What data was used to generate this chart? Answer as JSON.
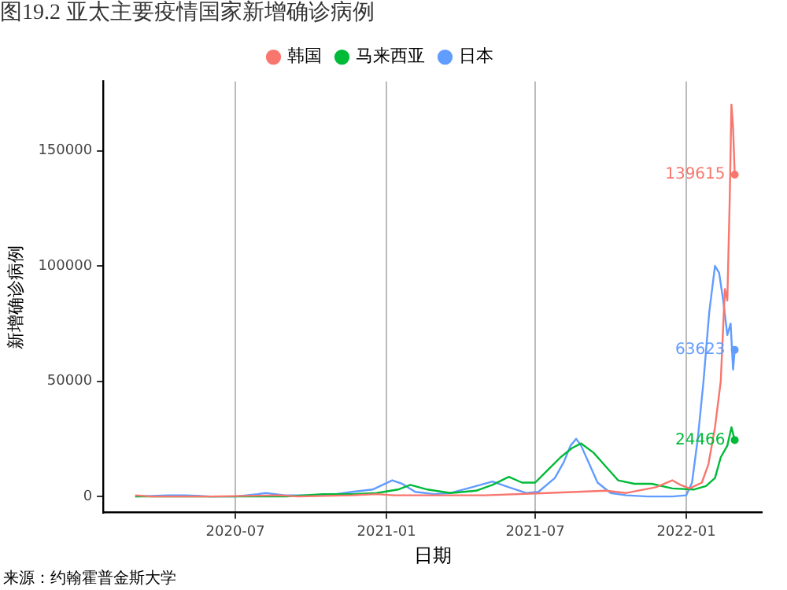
{
  "chart_data": {
    "type": "line",
    "title": "图19.2 亚太主要疫情国家新增确诊病例",
    "xlabel": "日期",
    "ylabel": "新增确诊病例",
    "annotations": [
      {
        "text": "139615",
        "x": "2022-03-01",
        "y": 139615
      },
      {
        "text": "63623",
        "x": "2022-03-01",
        "y": 63623
      },
      {
        "text": "24466",
        "x": "2022-03-01",
        "y": 24466
      },
      "来源：约翰霍普金斯大学"
    ],
    "series": [
      {
        "name": "韩国",
        "color": "#f8766d",
        "x": [
          "2020-03-01",
          "2020-03-20",
          "2020-06-01",
          "2020-08-25",
          "2020-09-15",
          "2020-11-20",
          "2020-12-20",
          "2021-01-10",
          "2021-03-01",
          "2021-05-01",
          "2021-07-15",
          "2021-09-25",
          "2021-10-20",
          "2021-11-25",
          "2021-12-15",
          "2021-12-25",
          "2022-01-05",
          "2022-01-20",
          "2022-01-28",
          "2022-02-05",
          "2022-02-12",
          "2022-02-17",
          "2022-02-20",
          "2022-02-23",
          "2022-02-25",
          "2022-02-27",
          "2022-03-01"
        ],
        "values": [
          500,
          0,
          0,
          500,
          0,
          500,
          1000,
          500,
          500,
          500,
          1500,
          2500,
          1500,
          4000,
          7000,
          5000,
          3500,
          6000,
          14000,
          30000,
          50000,
          90000,
          85000,
          130000,
          170000,
          160000,
          139615
        ]
      },
      {
        "name": "马来西亚",
        "color": "#00ba38",
        "x": [
          "2020-03-01",
          "2020-06-01",
          "2020-09-01",
          "2020-10-15",
          "2020-11-20",
          "2020-12-20",
          "2021-01-15",
          "2021-01-30",
          "2021-02-20",
          "2021-03-20",
          "2021-04-20",
          "2021-05-10",
          "2021-05-30",
          "2021-06-15",
          "2021-07-01",
          "2021-07-15",
          "2021-08-01",
          "2021-08-15",
          "2021-08-26",
          "2021-09-10",
          "2021-09-25",
          "2021-10-10",
          "2021-10-30",
          "2021-11-20",
          "2021-12-15",
          "2022-01-10",
          "2022-01-25",
          "2022-02-05",
          "2022-02-12",
          "2022-02-20",
          "2022-02-25",
          "2022-03-01"
        ],
        "values": [
          0,
          0,
          0,
          1000,
          1000,
          1500,
          3000,
          5000,
          3000,
          1500,
          2500,
          5000,
          8500,
          6000,
          6000,
          11000,
          17000,
          21000,
          23000,
          19000,
          13000,
          7000,
          5500,
          5500,
          3500,
          3000,
          4500,
          8000,
          17000,
          22000,
          30000,
          24466
        ]
      },
      {
        "name": "日本",
        "color": "#619cff",
        "x": [
          "2020-03-01",
          "2020-04-10",
          "2020-05-01",
          "2020-06-01",
          "2020-07-01",
          "2020-07-28",
          "2020-08-07",
          "2020-08-30",
          "2020-09-30",
          "2020-10-31",
          "2020-11-20",
          "2020-12-15",
          "2021-01-08",
          "2021-01-20",
          "2021-02-05",
          "2021-02-28",
          "2021-03-20",
          "2021-04-15",
          "2021-05-10",
          "2021-05-30",
          "2021-06-20",
          "2021-07-05",
          "2021-07-25",
          "2021-08-05",
          "2021-08-13",
          "2021-08-20",
          "2021-08-26",
          "2021-09-05",
          "2021-09-15",
          "2021-10-01",
          "2021-10-20",
          "2021-11-15",
          "2021-12-15",
          "2022-01-01",
          "2022-01-08",
          "2022-01-15",
          "2022-01-22",
          "2022-01-29",
          "2022-02-05",
          "2022-02-10",
          "2022-02-15",
          "2022-02-20",
          "2022-02-24",
          "2022-02-27",
          "2022-03-01"
        ],
        "values": [
          0,
          500,
          500,
          0,
          0,
          1000,
          1500,
          500,
          500,
          1000,
          2000,
          3000,
          7000,
          5500,
          2000,
          1000,
          1500,
          4000,
          6500,
          4000,
          1500,
          2000,
          8000,
          15000,
          22000,
          25000,
          22000,
          14000,
          6000,
          1500,
          500,
          0,
          0,
          500,
          6000,
          25000,
          50000,
          80000,
          100000,
          97000,
          85000,
          70000,
          75000,
          55000,
          63623
        ]
      }
    ],
    "xlim": [
      "2020-01-22",
      "2022-04-03"
    ],
    "xticks": [
      "2020-07",
      "2021-01",
      "2021-07",
      "2022-01"
    ],
    "ylim": [
      -7000,
      180000
    ],
    "yticks": [
      0,
      50000,
      100000,
      150000
    ],
    "grid": "x",
    "legend": "top",
    "line_style": "solid",
    "marker": "none"
  }
}
